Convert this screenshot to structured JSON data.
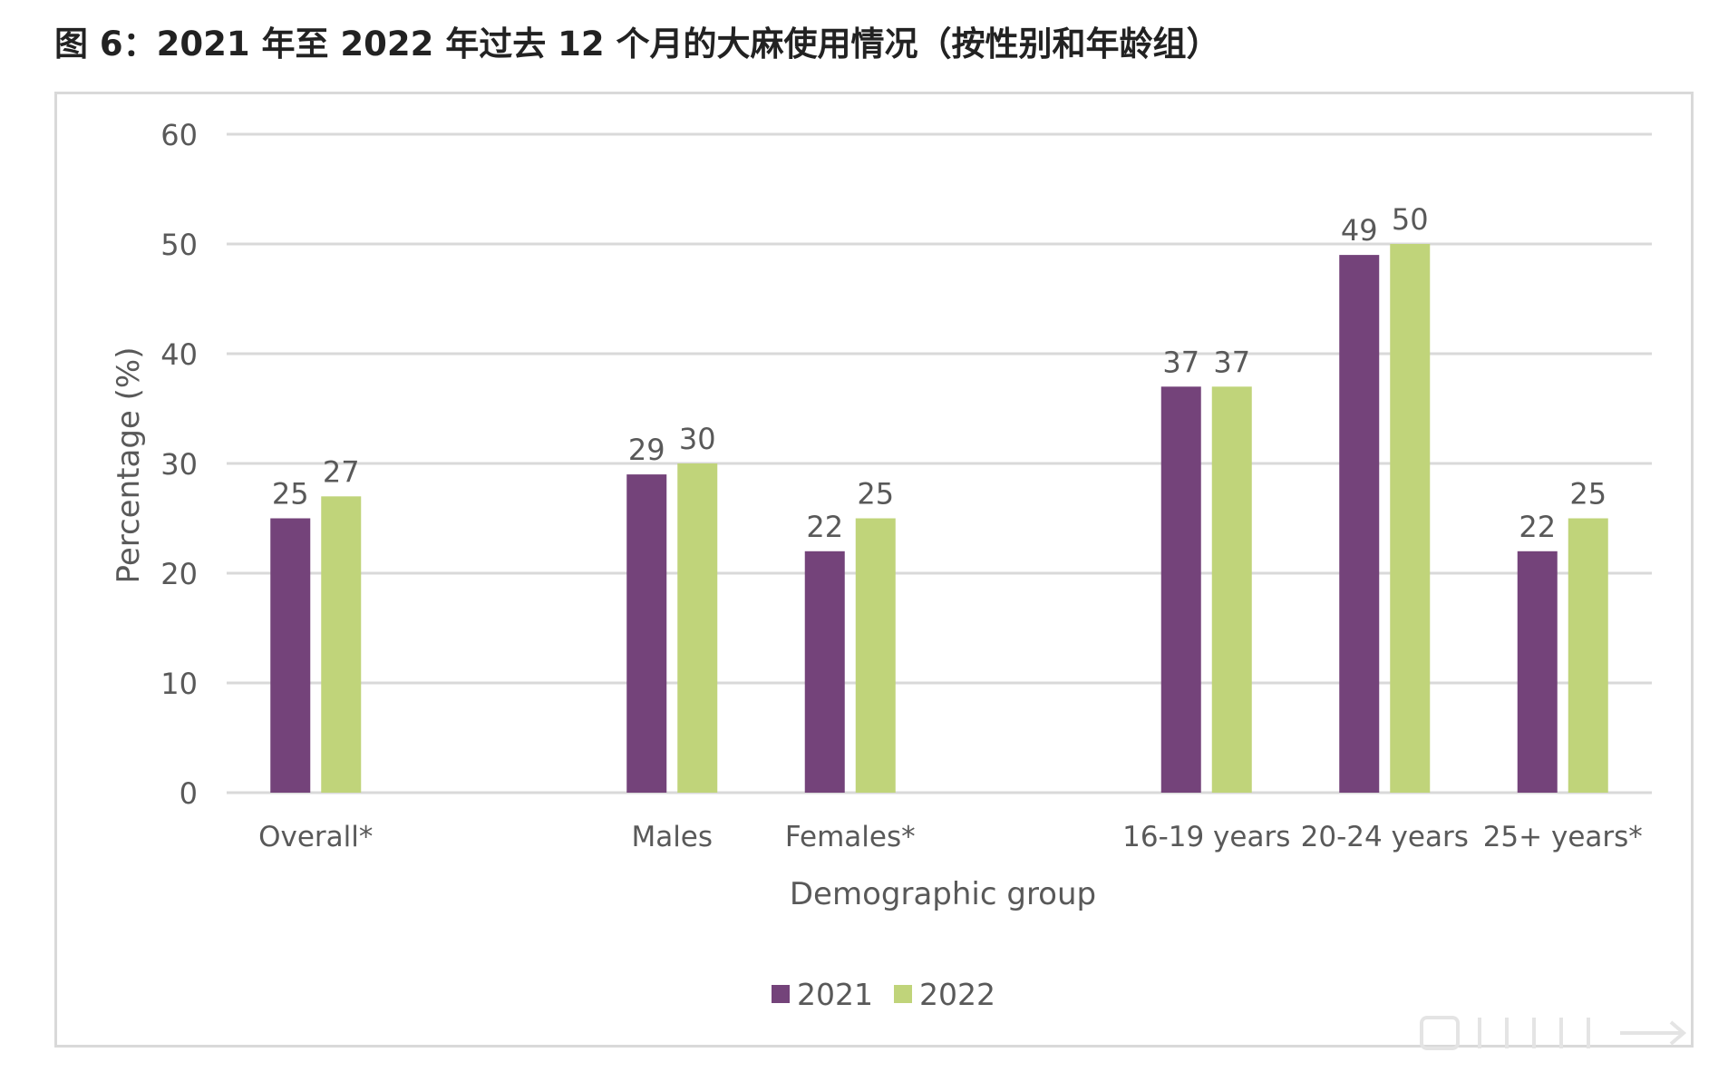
{
  "figure_title": "图 6：2021 年至 2022 年过去 12 个月的大麻使用情况（按性别和年龄组）",
  "colors": {
    "series_2021": "#74437a",
    "series_2022": "#c0d47a",
    "gridline": "#d9d9d9",
    "text": "#595959"
  },
  "chart_data": {
    "type": "bar",
    "categories": [
      "Overall*",
      "",
      "Males",
      "Females*",
      "",
      "16-19 years",
      "20-24 years",
      "25+ years*"
    ],
    "series": [
      {
        "name": "2021",
        "values": [
          25,
          null,
          29,
          22,
          null,
          37,
          49,
          22
        ]
      },
      {
        "name": "2022",
        "values": [
          27,
          null,
          30,
          25,
          null,
          37,
          50,
          25
        ]
      }
    ],
    "data_labels": [
      [
        "25",
        "",
        "29",
        "22",
        "",
        "37",
        "49",
        "22"
      ],
      [
        "27",
        "",
        "30",
        "25",
        "",
        "37",
        "50",
        "25"
      ]
    ],
    "title": "",
    "xlabel": "Demographic group",
    "ylabel": "Percentage (%)",
    "ylim": [
      0,
      60
    ],
    "yticks": [
      "0",
      "10",
      "20",
      "30",
      "40",
      "50",
      "60"
    ],
    "grid": true,
    "legend_position": "bottom"
  }
}
